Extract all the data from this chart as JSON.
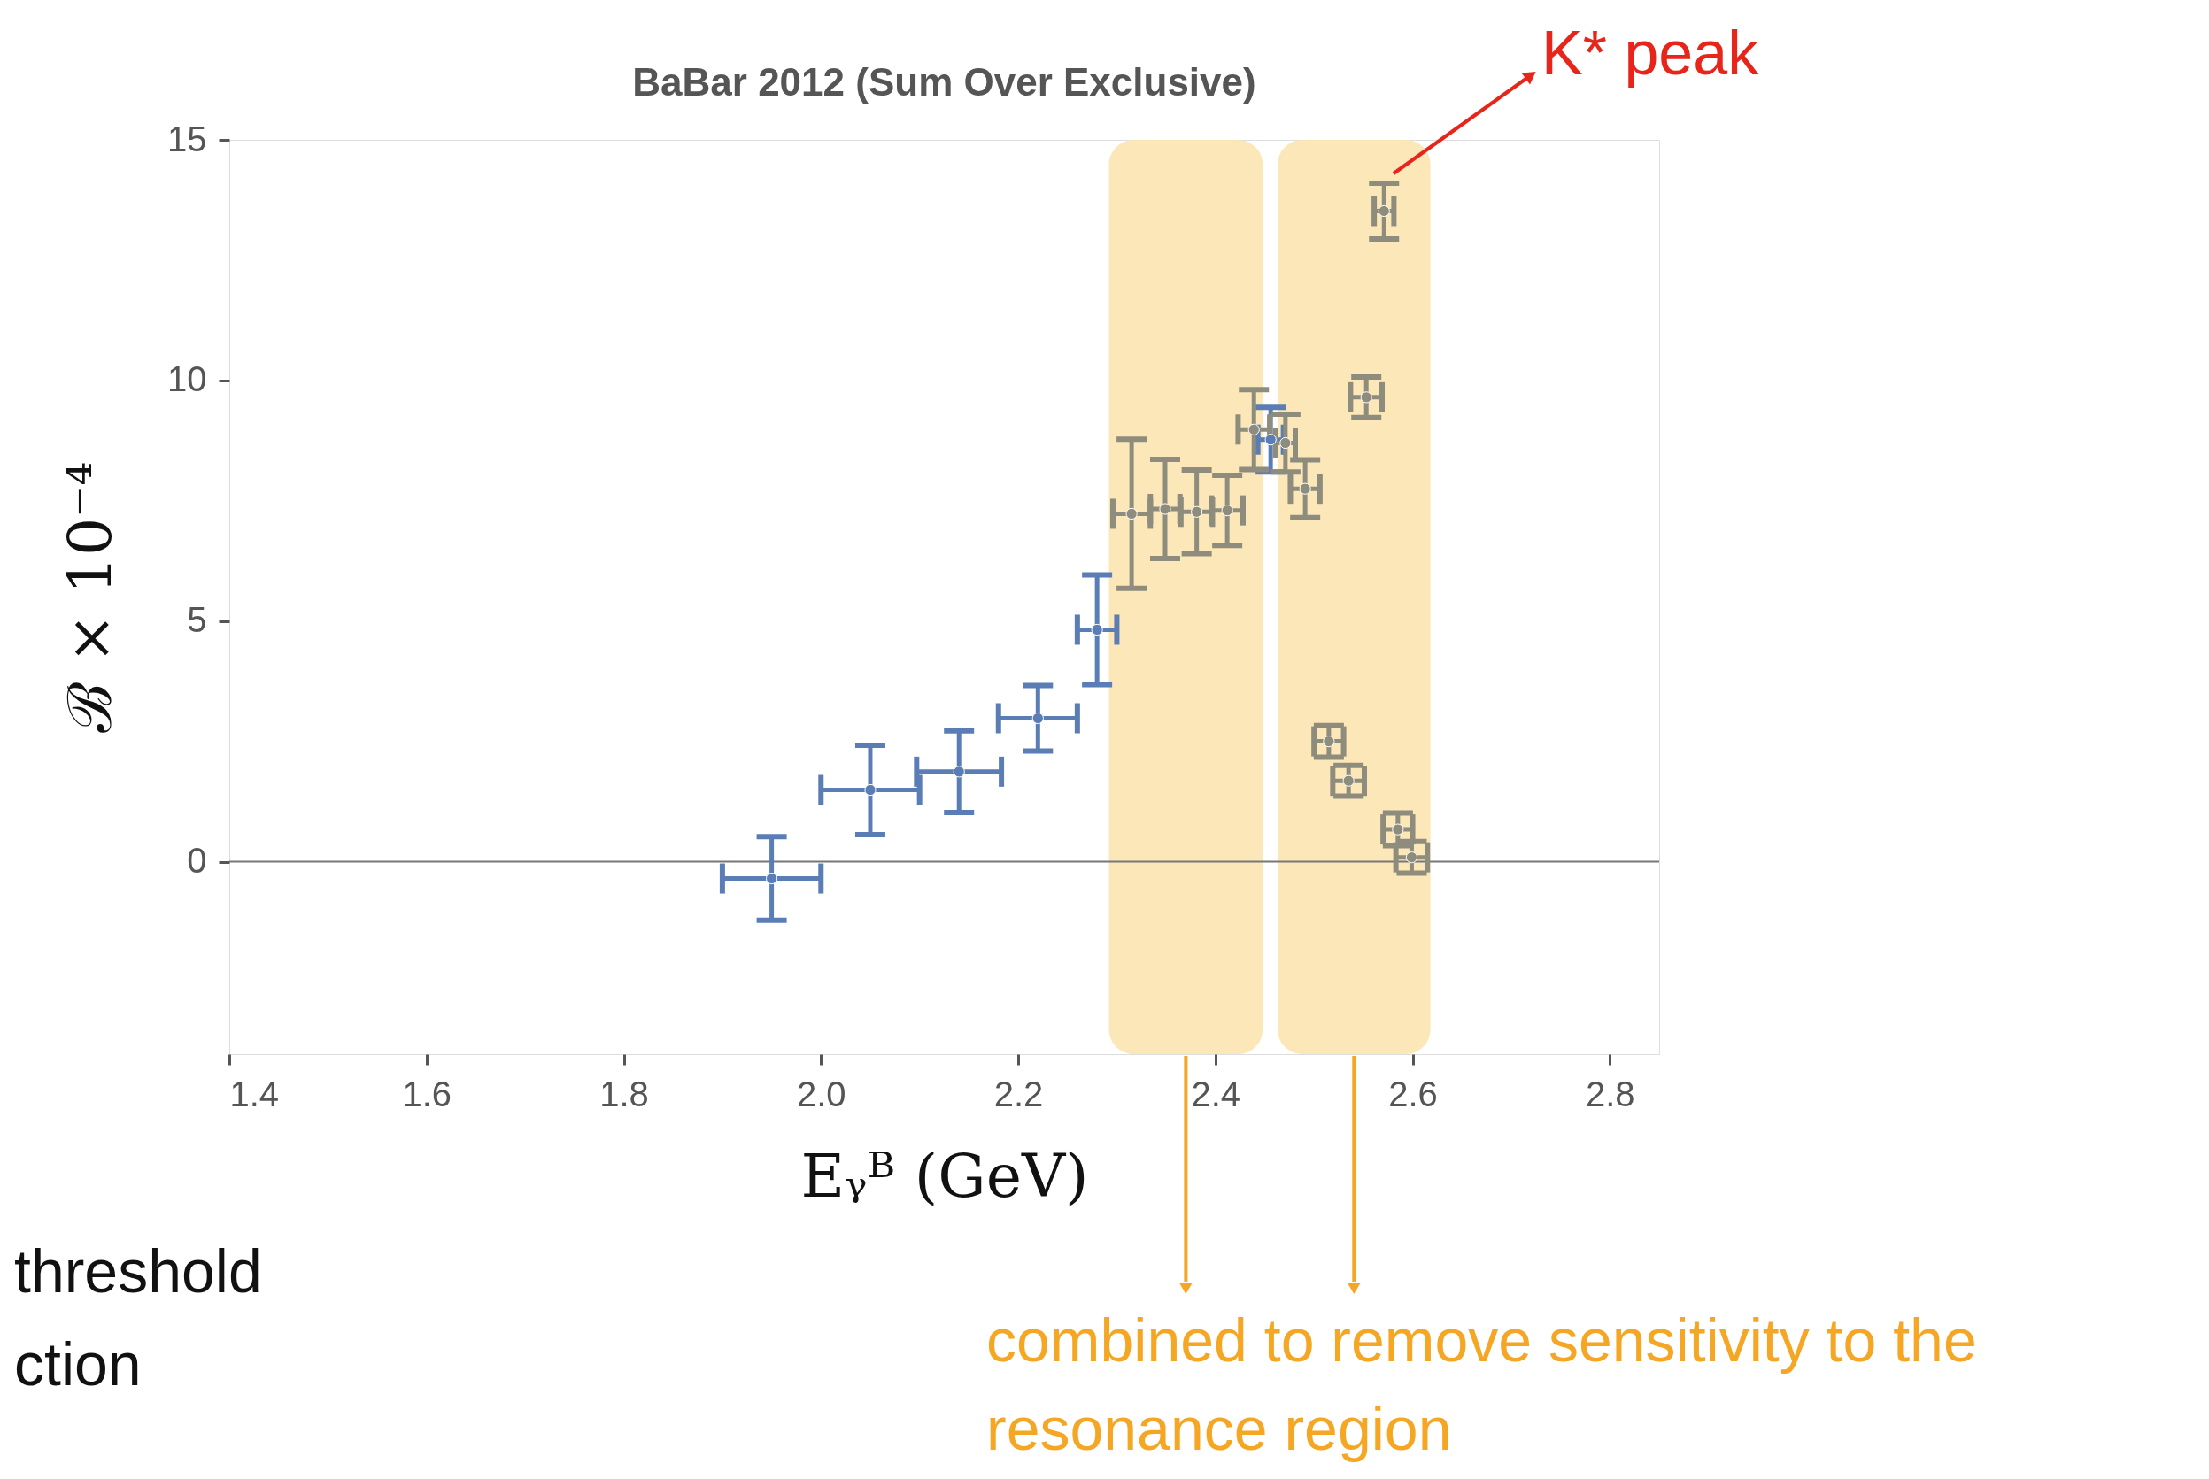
{
  "chart_data": {
    "type": "scatter",
    "title": "BaBar 2012 (Sum Over Exclusive)",
    "xlabel": "Eᵧᴮ (GeV)",
    "ylabel": "ℬ × 10⁻⁴",
    "xlim": [
      1.4,
      2.85
    ],
    "ylim": [
      -4,
      15
    ],
    "xticks": [
      1.4,
      1.6,
      1.8,
      {
        "value": 2.0,
        "label": "2.0"
      },
      2.2,
      2.4,
      2.6,
      2.8
    ],
    "yticks": [
      0,
      5,
      10,
      15
    ],
    "grid": false,
    "marker": "circle",
    "series": [
      {
        "color": "#5b7db5",
        "x": [
          1.95,
          2.05,
          2.14,
          2.22,
          2.28,
          2.456
        ],
        "values": [
          -0.35,
          1.49,
          1.87,
          2.98,
          4.82,
          8.77
        ],
        "errors": [
          0.87,
          0.93,
          0.85,
          0.68,
          1.14,
          0.67
        ],
        "xerrors": [
          0.05,
          0.05,
          0.043,
          0.04,
          0.02,
          0.013
        ]
      },
      {
        "color": "#8e8c7c",
        "x": [
          2.315,
          2.349,
          2.381,
          2.412,
          2.439,
          2.471,
          2.491,
          2.515,
          2.535,
          2.553,
          2.571,
          2.585,
          2.599
        ],
        "values": [
          7.23,
          7.33,
          7.27,
          7.3,
          8.98,
          8.7,
          7.75,
          2.5,
          1.68,
          9.65,
          13.52,
          0.67,
          0.09
        ],
        "errors": [
          1.55,
          1.03,
          0.87,
          0.73,
          0.83,
          0.6,
          0.6,
          0.33,
          0.32,
          0.42,
          0.58,
          0.34,
          0.33
        ],
        "xerrors": [
          0.019,
          0.015,
          0.016,
          0.016,
          0.016,
          0.01,
          0.015,
          0.015,
          0.016,
          0.016,
          0.01,
          0.015,
          0.016
        ]
      }
    ],
    "ref_lines": [
      {
        "axis": "y",
        "value": 0,
        "color": "#777777"
      }
    ],
    "bands": [
      {
        "axis": "x",
        "from": 2.292,
        "to": 2.448,
        "color": "#fce4b0"
      },
      {
        "axis": "x",
        "from": 2.463,
        "to": 2.618,
        "color": "#fce4b0"
      }
    ],
    "annotations": [
      "K* peak",
      "combined to remove sensitivity to the resonance region",
      "threshold",
      "ction"
    ]
  }
}
